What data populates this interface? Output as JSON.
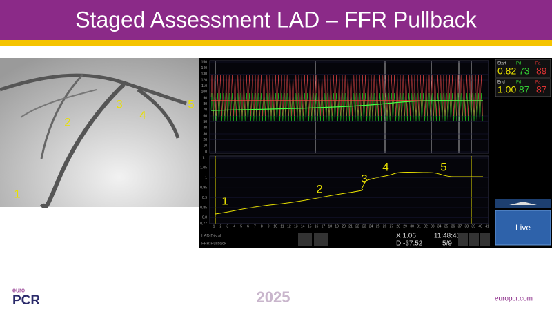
{
  "header": {
    "title": "Staged Assessment LAD – FFR Pullback"
  },
  "angiogram": {
    "labels": [
      "1",
      "2",
      "3",
      "4",
      "5"
    ]
  },
  "pullback": {
    "labels": [
      "1",
      "2",
      "3",
      "4",
      "5"
    ],
    "pressure_ticks": [
      150,
      140,
      130,
      120,
      110,
      100,
      90,
      80,
      70,
      60,
      50,
      40,
      30,
      20,
      10,
      0
    ],
    "ffr_ticks": [
      1.1,
      1.05,
      1,
      0.95,
      0.9,
      0.85,
      0.8,
      0.77
    ],
    "xticks": [
      1,
      2,
      3,
      4,
      5,
      6,
      7,
      8,
      9,
      10,
      11,
      12,
      13,
      14,
      15,
      16,
      17,
      18,
      19,
      20,
      21,
      22,
      23,
      24,
      25,
      26,
      27,
      28,
      29,
      30,
      31,
      32,
      33,
      34,
      35,
      36,
      37,
      38,
      39,
      40,
      41
    ],
    "start": {
      "label": "Start",
      "ffr": "0.82",
      "pd_label": "Pd",
      "pd": "73",
      "pa_label": "Pa",
      "pa": "89"
    },
    "end": {
      "label": "End",
      "ffr": "1.00",
      "pd_label": "Pd",
      "pd": "87",
      "pa_label": "Pa",
      "pa": "87"
    },
    "vessel": "LAD Distal",
    "mode": "FFR Pullback",
    "x_readout": "X 1.06",
    "d_readout": "D -37.52",
    "time": "11:48:45",
    "page": "5/9",
    "live": "Live"
  },
  "footer": {
    "euro": "euro",
    "pcr": "PCR",
    "year": "2025",
    "url": "europcr.com"
  }
}
